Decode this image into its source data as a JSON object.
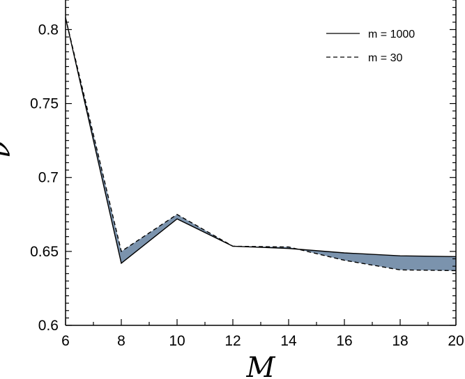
{
  "chart_data": {
    "type": "line",
    "xlabel": "M",
    "ylabel": "ν",
    "xlim": [
      6,
      20
    ],
    "ylim": [
      0.6,
      0.82
    ],
    "x_ticks": [
      6,
      8,
      10,
      12,
      14,
      16,
      18,
      20
    ],
    "x_tick_labels": [
      "6",
      "8",
      "10",
      "12",
      "14",
      "16",
      "18",
      "20"
    ],
    "y_ticks": [
      0.6,
      0.65,
      0.7,
      0.75,
      0.8
    ],
    "y_tick_labels": [
      "0.6",
      "0.65",
      "0.7",
      "0.75",
      "0.8"
    ],
    "x": [
      6,
      8,
      10,
      12,
      14,
      16,
      18,
      20
    ],
    "series": [
      {
        "name": "m = 1000",
        "style": "solid",
        "values": [
          0.808,
          0.642,
          0.672,
          0.6535,
          0.652,
          0.649,
          0.647,
          0.6465
        ]
      },
      {
        "name": "m = 30",
        "style": "dashed",
        "values": [
          0.808,
          0.65,
          0.675,
          0.6535,
          0.653,
          0.644,
          0.6375,
          0.637
        ]
      }
    ],
    "fill_between": {
      "color": "#7b93ad"
    },
    "grid": false,
    "legend_position": "top-right",
    "colors": {
      "line": "#000000",
      "fill": "#7b93ad"
    }
  }
}
